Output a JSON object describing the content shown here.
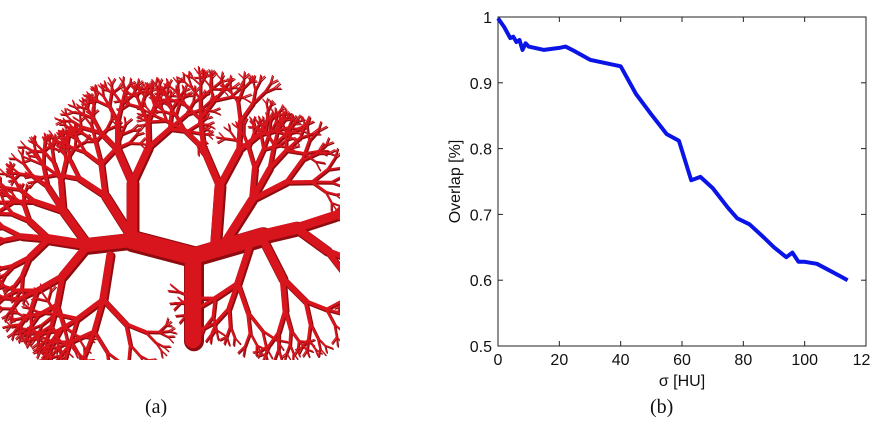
{
  "captions": {
    "a": "(a)",
    "b": "(b)"
  },
  "figure_a": {
    "colors": {
      "vessel": "#d8141c",
      "vessel_dark": "#8e0c10"
    }
  },
  "chart_data": {
    "type": "line",
    "xlabel": "σ [HU]",
    "ylabel": "Overlap [%]",
    "xlim": [
      0,
      120
    ],
    "ylim": [
      0.5,
      1
    ],
    "xticks": [
      0,
      20,
      40,
      60,
      80,
      100,
      120
    ],
    "yticks": [
      0.5,
      0.6,
      0.7,
      0.8,
      0.9,
      1
    ],
    "ytick_labels": [
      "0.5",
      "0.6",
      "0.7",
      "0.8",
      "0.9",
      "1"
    ],
    "grid": false,
    "color": "#0a14e6",
    "series": [
      {
        "x": [
          0,
          2,
          4,
          5,
          6,
          7,
          8,
          9,
          10,
          15,
          20,
          22,
          25,
          30,
          35,
          40,
          45,
          50,
          55,
          59,
          63,
          66,
          70,
          75,
          78,
          82,
          86,
          90,
          94,
          96,
          98,
          100,
          104,
          108,
          112,
          114
        ],
        "y": [
          0.998,
          0.985,
          0.968,
          0.97,
          0.962,
          0.965,
          0.95,
          0.96,
          0.955,
          0.95,
          0.953,
          0.955,
          0.948,
          0.935,
          0.93,
          0.925,
          0.883,
          0.852,
          0.822,
          0.812,
          0.752,
          0.757,
          0.74,
          0.71,
          0.694,
          0.685,
          0.668,
          0.65,
          0.635,
          0.642,
          0.628,
          0.628,
          0.625,
          0.615,
          0.605,
          0.6
        ]
      }
    ]
  }
}
